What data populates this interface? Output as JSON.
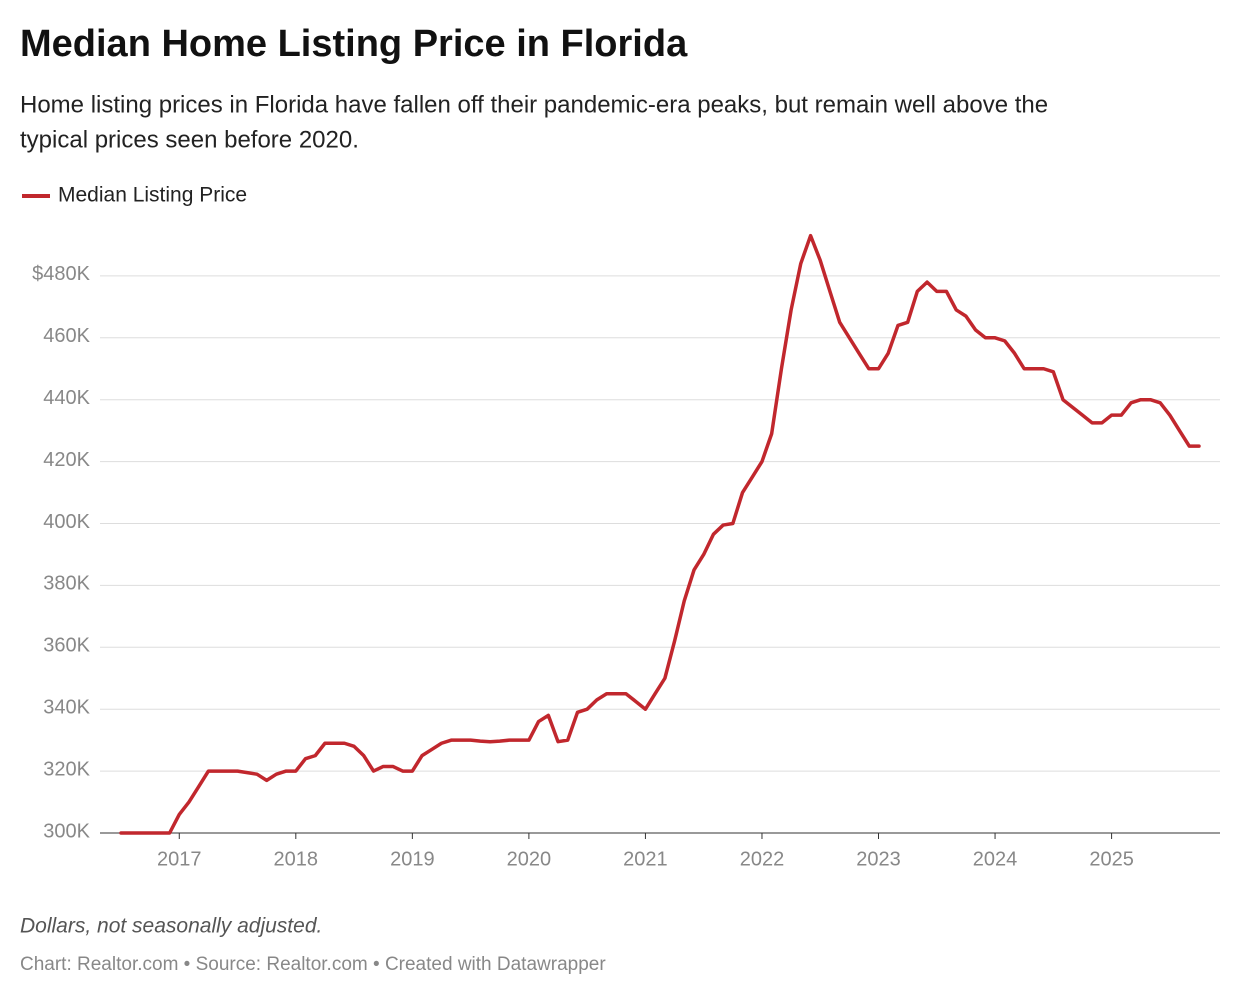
{
  "chart_data": {
    "type": "line",
    "title": "Median Home Listing Price in Florida",
    "subtitle": [
      "Home listing prices in Florida have fallen off their pandemic-era peaks, but remain well above the",
      "typical prices seen before 2020."
    ],
    "notes": "Dollars, not seasonally adjusted.",
    "source": "Chart: Realtor.com • Source: Realtor.com • Created with Datawrapper",
    "x": [
      2016.5,
      2016.583,
      2016.667,
      2016.75,
      2016.833,
      2016.917,
      2017.0,
      2017.083,
      2017.167,
      2017.25,
      2017.333,
      2017.417,
      2017.5,
      2017.583,
      2017.667,
      2017.75,
      2017.833,
      2017.917,
      2018.0,
      2018.083,
      2018.167,
      2018.25,
      2018.333,
      2018.417,
      2018.5,
      2018.583,
      2018.667,
      2018.75,
      2018.833,
      2018.917,
      2019.0,
      2019.083,
      2019.167,
      2019.25,
      2019.333,
      2019.417,
      2019.5,
      2019.583,
      2019.667,
      2019.75,
      2019.833,
      2019.917,
      2020.0,
      2020.083,
      2020.167,
      2020.25,
      2020.333,
      2020.417,
      2020.5,
      2020.583,
      2020.667,
      2020.75,
      2020.833,
      2020.917,
      2021.0,
      2021.083,
      2021.167,
      2021.25,
      2021.333,
      2021.417,
      2021.5,
      2021.583,
      2021.667,
      2021.75,
      2021.833,
      2021.917,
      2022.0,
      2022.083,
      2022.167,
      2022.25,
      2022.333,
      2022.417,
      2022.5,
      2022.583,
      2022.667,
      2022.75,
      2022.833,
      2022.917,
      2023.0,
      2023.083,
      2023.167,
      2023.25,
      2023.333,
      2023.417,
      2023.5,
      2023.583,
      2023.667,
      2023.75,
      2023.833,
      2023.917,
      2024.0,
      2024.083,
      2024.167,
      2024.25,
      2024.333,
      2024.417,
      2024.5,
      2024.583,
      2024.667,
      2024.75,
      2024.833,
      2024.917,
      2025.0,
      2025.083,
      2025.167,
      2025.25,
      2025.333,
      2025.417,
      2025.5,
      2025.583,
      2025.667,
      2025.75
    ],
    "series": [
      {
        "name": "Median Listing Price",
        "color": "#c1272d",
        "values": [
          300000,
          300000,
          300000,
          300000,
          300000,
          300000,
          306000,
          310000,
          315000,
          320000,
          320000,
          320000,
          320000,
          319500,
          319000,
          317000,
          319000,
          320000,
          320000,
          324000,
          325000,
          329000,
          329000,
          329000,
          328000,
          325000,
          320000,
          321500,
          321500,
          320000,
          320000,
          325000,
          327000,
          329000,
          330000,
          330000,
          330000,
          329700,
          329500,
          329700,
          330000,
          330000,
          330000,
          336000,
          338000,
          329500,
          330000,
          339000,
          340000,
          343000,
          345000,
          345000,
          345000,
          342500,
          340000,
          345000,
          350000,
          362000,
          375000,
          385000,
          390000,
          396500,
          399500,
          400000,
          410000,
          415000,
          420000,
          429000,
          450000,
          469000,
          484000,
          493000,
          485000,
          475000,
          465000,
          460000,
          455000,
          450000,
          450000,
          455000,
          464000,
          465000,
          475000,
          478000,
          475000,
          475000,
          469000,
          467000,
          462500,
          460000,
          460000,
          459000,
          455000,
          450000,
          450000,
          450000,
          449000,
          440000,
          437500,
          435000,
          432500,
          432500,
          435000,
          435000,
          439000,
          440000,
          440000,
          439000,
          435000,
          430000,
          425000,
          425000
        ]
      }
    ],
    "xlim": [
      2016.5,
      2025.75
    ],
    "xticks": [
      2017,
      2018,
      2019,
      2020,
      2021,
      2022,
      2023,
      2024,
      2025
    ],
    "ylim": [
      300000,
      500000
    ],
    "yticks": [
      {
        "value": 300000,
        "label": "300K"
      },
      {
        "value": 320000,
        "label": "320K"
      },
      {
        "value": 340000,
        "label": "340K"
      },
      {
        "value": 360000,
        "label": "360K"
      },
      {
        "value": 380000,
        "label": "380K"
      },
      {
        "value": 400000,
        "label": "400K"
      },
      {
        "value": 420000,
        "label": "420K"
      },
      {
        "value": 440000,
        "label": "440K"
      },
      {
        "value": 460000,
        "label": "460K"
      },
      {
        "value": 480000,
        "label": "$480K"
      }
    ],
    "grid": true
  }
}
